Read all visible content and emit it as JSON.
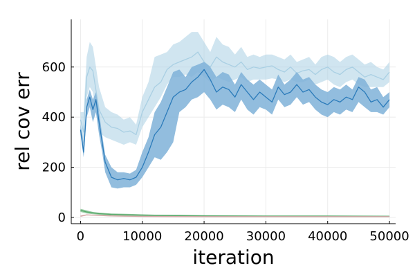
{
  "chart_data": {
    "type": "line",
    "title": "",
    "xlabel": "iteration",
    "ylabel": "rel cov err",
    "xlim": [
      -1500,
      51000
    ],
    "ylim": [
      -25,
      790
    ],
    "x_ticks": [
      0,
      10000,
      20000,
      30000,
      40000,
      50000
    ],
    "x_tick_labels": [
      "0",
      "10000",
      "20000",
      "30000",
      "40000",
      "50000"
    ],
    "y_ticks": [
      0,
      200,
      400,
      600
    ],
    "y_tick_labels": [
      "0",
      "200",
      "400",
      "600"
    ],
    "grid": true,
    "legend": "none",
    "series": [
      {
        "color": "#a9cfe3",
        "band_opacity": 0.55,
        "x": [
          0,
          500,
          1000,
          1500,
          2000,
          3000,
          4000,
          5000,
          6000,
          7000,
          8000,
          9000,
          10000,
          11000,
          12000,
          13000,
          14000,
          15000,
          16000,
          17000,
          18000,
          19000,
          20000,
          21000,
          22000,
          23000,
          24000,
          25000,
          26000,
          27000,
          28000,
          29000,
          30000,
          31000,
          32000,
          33000,
          34000,
          35000,
          36000,
          37000,
          38000,
          39000,
          40000,
          41000,
          42000,
          43000,
          44000,
          45000,
          46000,
          47000,
          48000,
          49000,
          50000
        ],
        "mean": [
          390,
          340,
          560,
          600,
          585,
          430,
          380,
          360,
          355,
          340,
          345,
          330,
          420,
          470,
          520,
          540,
          590,
          610,
          620,
          630,
          640,
          660,
          620,
          600,
          640,
          620,
          610,
          600,
          620,
          590,
          600,
          595,
          600,
          605,
          590,
          580,
          600,
          575,
          585,
          590,
          570,
          590,
          600,
          580,
          570,
          590,
          600,
          580,
          560,
          570,
          560,
          550,
          580
        ],
        "lower": [
          330,
          300,
          480,
          520,
          500,
          340,
          320,
          310,
          300,
          290,
          300,
          290,
          360,
          400,
          440,
          480,
          530,
          560,
          560,
          570,
          560,
          580,
          560,
          540,
          560,
          550,
          540,
          550,
          560,
          540,
          550,
          550,
          550,
          555,
          550,
          540,
          550,
          540,
          540,
          550,
          530,
          540,
          550,
          530,
          520,
          540,
          550,
          530,
          520,
          520,
          520,
          520,
          540
        ],
        "upper": [
          420,
          420,
          640,
          700,
          680,
          520,
          440,
          420,
          410,
          390,
          400,
          370,
          480,
          540,
          640,
          650,
          660,
          690,
          700,
          720,
          740,
          740,
          700,
          660,
          720,
          690,
          680,
          650,
          680,
          640,
          650,
          640,
          650,
          650,
          640,
          630,
          650,
          620,
          630,
          640,
          610,
          640,
          650,
          640,
          620,
          640,
          650,
          630,
          610,
          620,
          600,
          590,
          620
        ]
      },
      {
        "color": "#2b7bba",
        "band_color": "#7fb1d8",
        "band_opacity": 0.85,
        "x": [
          0,
          500,
          1000,
          1500,
          2000,
          2500,
          3000,
          3500,
          4000,
          5000,
          6000,
          7000,
          8000,
          9000,
          10000,
          11000,
          12000,
          13000,
          14000,
          15000,
          16000,
          17000,
          18000,
          19000,
          20000,
          21000,
          22000,
          23000,
          24000,
          25000,
          26000,
          27000,
          28000,
          29000,
          30000,
          31000,
          32000,
          33000,
          34000,
          35000,
          36000,
          37000,
          38000,
          39000,
          40000,
          41000,
          42000,
          43000,
          44000,
          45000,
          46000,
          47000,
          48000,
          49000,
          50000
        ],
        "mean": [
          350,
          260,
          440,
          480,
          430,
          470,
          380,
          300,
          220,
          160,
          150,
          155,
          150,
          160,
          200,
          260,
          330,
          360,
          420,
          480,
          500,
          510,
          540,
          560,
          590,
          550,
          500,
          520,
          510,
          480,
          530,
          500,
          470,
          500,
          480,
          460,
          520,
          490,
          500,
          530,
          500,
          510,
          480,
          460,
          450,
          470,
          460,
          480,
          470,
          520,
          500,
          460,
          470,
          440,
          470
        ],
        "lower": [
          330,
          240,
          400,
          440,
          380,
          420,
          330,
          260,
          180,
          120,
          115,
          120,
          120,
          130,
          160,
          200,
          240,
          230,
          260,
          300,
          420,
          440,
          470,
          480,
          500,
          470,
          430,
          450,
          440,
          420,
          470,
          430,
          410,
          440,
          430,
          410,
          470,
          440,
          450,
          480,
          450,
          460,
          430,
          410,
          400,
          420,
          410,
          430,
          420,
          460,
          440,
          420,
          420,
          410,
          440
        ],
        "upper": [
          370,
          300,
          470,
          510,
          470,
          500,
          420,
          330,
          250,
          200,
          180,
          180,
          175,
          190,
          260,
          320,
          420,
          460,
          520,
          580,
          590,
          560,
          600,
          610,
          620,
          600,
          560,
          580,
          570,
          530,
          580,
          550,
          530,
          550,
          530,
          510,
          570,
          530,
          550,
          580,
          550,
          560,
          530,
          510,
          500,
          520,
          510,
          530,
          510,
          560,
          550,
          510,
          520,
          480,
          500
        ]
      },
      {
        "color": "#55a868",
        "band_opacity": 0.6,
        "x": [
          0,
          1000,
          2000,
          3000,
          5000,
          8000,
          12000,
          16000,
          20000,
          30000,
          40000,
          50000
        ],
        "mean": [
          28,
          22,
          18,
          15,
          12,
          10,
          8,
          7,
          6,
          5,
          5,
          4
        ],
        "lower": [
          22,
          16,
          13,
          11,
          8,
          6,
          5,
          4,
          3,
          2,
          2,
          2
        ],
        "upper": [
          34,
          28,
          22,
          19,
          16,
          14,
          11,
          10,
          9,
          8,
          8,
          7
        ]
      },
      {
        "color": "#d4a6a6",
        "band_opacity": 0.6,
        "x": [
          0,
          1000,
          5000,
          10000,
          20000,
          30000,
          40000,
          50000
        ],
        "mean": [
          5,
          10,
          6,
          4,
          3,
          3,
          3,
          3
        ],
        "lower": [
          2,
          8,
          4,
          2,
          2,
          2,
          2,
          2
        ],
        "upper": [
          8,
          12,
          8,
          6,
          5,
          5,
          5,
          5
        ]
      }
    ]
  }
}
